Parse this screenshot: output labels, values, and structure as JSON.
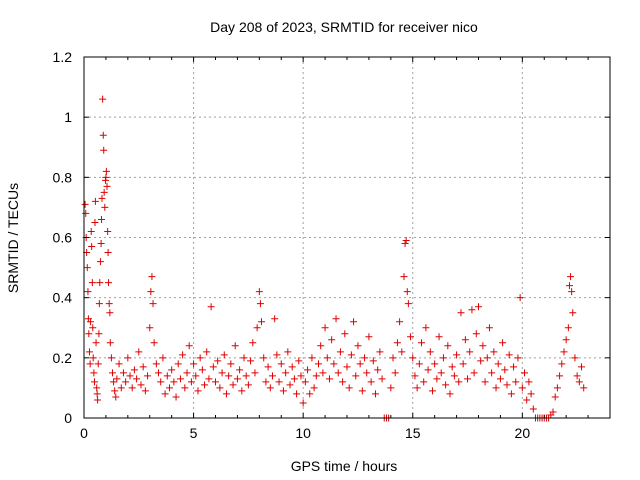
{
  "chart_data": {
    "type": "scatter",
    "title": "Day 208 of 2023, SRMTID for receiver nico",
    "xlabel": "GPS time / hours",
    "ylabel": "SRMTID / TECUs",
    "xlim": [
      0,
      24
    ],
    "ylim": [
      0,
      1.2
    ],
    "grid": true,
    "x_ticks": [
      0,
      5,
      10,
      15,
      20
    ],
    "x_tick_labels": [
      "0",
      "5",
      "10",
      "15",
      "20"
    ],
    "y_ticks": [
      0,
      0.2,
      0.4,
      0.6,
      0.8,
      1.0,
      1.2
    ],
    "y_tick_labels": [
      "0",
      "0.2",
      "0.4",
      "0.6",
      "0.8",
      "1",
      "1.2"
    ],
    "marker": "plus",
    "marker_color": "#e00000",
    "series": [
      {
        "name": "SRMTID",
        "points": [
          [
            0.05,
            0.71
          ],
          [
            0.08,
            0.68
          ],
          [
            0.1,
            0.6
          ],
          [
            0.12,
            0.55
          ],
          [
            0.15,
            0.5
          ],
          [
            0.18,
            0.42
          ],
          [
            0.2,
            0.33
          ],
          [
            0.22,
            0.28
          ],
          [
            0.25,
            0.22
          ],
          [
            0.28,
            0.18
          ],
          [
            0.3,
            0.32
          ],
          [
            0.33,
            0.62
          ],
          [
            0.35,
            0.57
          ],
          [
            0.38,
            0.45
          ],
          [
            0.4,
            0.3
          ],
          [
            0.42,
            0.2
          ],
          [
            0.45,
            0.15
          ],
          [
            0.48,
            0.12
          ],
          [
            0.5,
            0.65
          ],
          [
            0.52,
            0.72
          ],
          [
            0.55,
            0.25
          ],
          [
            0.58,
            0.1
          ],
          [
            0.6,
            0.08
          ],
          [
            0.62,
            0.06
          ],
          [
            0.65,
            0.18
          ],
          [
            0.68,
            0.28
          ],
          [
            0.7,
            0.38
          ],
          [
            0.72,
            0.45
          ],
          [
            0.75,
            0.52
          ],
          [
            0.78,
            0.58
          ],
          [
            0.8,
            0.66
          ],
          [
            0.82,
            0.73
          ],
          [
            0.85,
            1.06
          ],
          [
            0.88,
            0.94
          ],
          [
            0.9,
            0.89
          ],
          [
            0.92,
            0.75
          ],
          [
            0.95,
            0.7
          ],
          [
            0.98,
            0.79
          ],
          [
            1.0,
            0.8
          ],
          [
            1.02,
            0.82
          ],
          [
            1.05,
            0.77
          ],
          [
            1.08,
            0.62
          ],
          [
            1.1,
            0.55
          ],
          [
            1.12,
            0.45
          ],
          [
            1.15,
            0.38
          ],
          [
            1.18,
            0.35
          ],
          [
            1.2,
            0.25
          ],
          [
            1.25,
            0.2
          ],
          [
            1.3,
            0.15
          ],
          [
            1.35,
            0.12
          ],
          [
            1.4,
            0.09
          ],
          [
            1.45,
            0.07
          ],
          [
            1.5,
            0.13
          ],
          [
            1.6,
            0.18
          ],
          [
            1.7,
            0.1
          ],
          [
            1.8,
            0.15
          ],
          [
            1.9,
            0.12
          ],
          [
            2.0,
            0.2
          ],
          [
            2.1,
            0.14
          ],
          [
            2.2,
            0.1
          ],
          [
            2.3,
            0.16
          ],
          [
            2.4,
            0.13
          ],
          [
            2.5,
            0.22
          ],
          [
            2.6,
            0.11
          ],
          [
            2.7,
            0.17
          ],
          [
            2.8,
            0.09
          ],
          [
            2.9,
            0.14
          ],
          [
            3.0,
            0.3
          ],
          [
            3.05,
            0.42
          ],
          [
            3.1,
            0.47
          ],
          [
            3.15,
            0.38
          ],
          [
            3.2,
            0.25
          ],
          [
            3.3,
            0.18
          ],
          [
            3.4,
            0.15
          ],
          [
            3.5,
            0.12
          ],
          [
            3.6,
            0.2
          ],
          [
            3.7,
            0.08
          ],
          [
            3.8,
            0.14
          ],
          [
            3.9,
            0.1
          ],
          [
            4.0,
            0.16
          ],
          [
            4.1,
            0.12
          ],
          [
            4.2,
            0.07
          ],
          [
            4.3,
            0.18
          ],
          [
            4.4,
            0.13
          ],
          [
            4.5,
            0.21
          ],
          [
            4.6,
            0.1
          ],
          [
            4.7,
            0.15
          ],
          [
            4.8,
            0.24
          ],
          [
            4.9,
            0.12
          ],
          [
            5.0,
            0.18
          ],
          [
            5.1,
            0.14
          ],
          [
            5.2,
            0.09
          ],
          [
            5.3,
            0.2
          ],
          [
            5.4,
            0.16
          ],
          [
            5.5,
            0.11
          ],
          [
            5.6,
            0.22
          ],
          [
            5.7,
            0.13
          ],
          [
            5.8,
            0.37
          ],
          [
            5.9,
            0.17
          ],
          [
            6.0,
            0.12
          ],
          [
            6.1,
            0.19
          ],
          [
            6.2,
            0.1
          ],
          [
            6.3,
            0.15
          ],
          [
            6.4,
            0.21
          ],
          [
            6.5,
            0.08
          ],
          [
            6.6,
            0.14
          ],
          [
            6.7,
            0.18
          ],
          [
            6.8,
            0.11
          ],
          [
            6.9,
            0.24
          ],
          [
            7.0,
            0.13
          ],
          [
            7.1,
            0.16
          ],
          [
            7.2,
            0.09
          ],
          [
            7.3,
            0.2
          ],
          [
            7.4,
            0.14
          ],
          [
            7.5,
            0.11
          ],
          [
            7.6,
            0.19
          ],
          [
            7.7,
            0.25
          ],
          [
            7.8,
            0.15
          ],
          [
            7.9,
            0.3
          ],
          [
            8.0,
            0.42
          ],
          [
            8.05,
            0.38
          ],
          [
            8.1,
            0.32
          ],
          [
            8.2,
            0.2
          ],
          [
            8.3,
            0.12
          ],
          [
            8.4,
            0.17
          ],
          [
            8.5,
            0.1
          ],
          [
            8.6,
            0.14
          ],
          [
            8.7,
            0.33
          ],
          [
            8.8,
            0.21
          ],
          [
            8.9,
            0.12
          ],
          [
            9.0,
            0.18
          ],
          [
            9.1,
            0.09
          ],
          [
            9.2,
            0.15
          ],
          [
            9.3,
            0.22
          ],
          [
            9.4,
            0.11
          ],
          [
            9.5,
            0.17
          ],
          [
            9.6,
            0.13
          ],
          [
            9.7,
            0.08
          ],
          [
            9.8,
            0.19
          ],
          [
            9.9,
            0.14
          ],
          [
            10.0,
            0.05
          ],
          [
            10.1,
            0.12
          ],
          [
            10.2,
            0.16
          ],
          [
            10.3,
            0.08
          ],
          [
            10.4,
            0.2
          ],
          [
            10.5,
            0.1
          ],
          [
            10.6,
            0.14
          ],
          [
            10.7,
            0.18
          ],
          [
            10.8,
            0.24
          ],
          [
            10.9,
            0.15
          ],
          [
            11.0,
            0.3
          ],
          [
            11.1,
            0.2
          ],
          [
            11.2,
            0.13
          ],
          [
            11.3,
            0.26
          ],
          [
            11.4,
            0.18
          ],
          [
            11.5,
            0.33
          ],
          [
            11.6,
            0.15
          ],
          [
            11.7,
            0.22
          ],
          [
            11.8,
            0.12
          ],
          [
            11.9,
            0.28
          ],
          [
            12.0,
            0.17
          ],
          [
            12.1,
            0.1
          ],
          [
            12.2,
            0.21
          ],
          [
            12.3,
            0.32
          ],
          [
            12.4,
            0.14
          ],
          [
            12.5,
            0.24
          ],
          [
            12.6,
            0.18
          ],
          [
            12.7,
            0.09
          ],
          [
            12.8,
            0.2
          ],
          [
            12.9,
            0.15
          ],
          [
            13.0,
            0.27
          ],
          [
            13.1,
            0.12
          ],
          [
            13.2,
            0.19
          ],
          [
            13.3,
            0.08
          ],
          [
            13.4,
            0.16
          ],
          [
            13.5,
            0.22
          ],
          [
            13.6,
            0.13
          ],
          [
            13.7,
            0.0
          ],
          [
            13.8,
            0.0
          ],
          [
            13.9,
            0.0
          ],
          [
            14.0,
            0.1
          ],
          [
            14.1,
            0.2
          ],
          [
            14.2,
            0.15
          ],
          [
            14.3,
            0.25
          ],
          [
            14.4,
            0.32
          ],
          [
            14.5,
            0.22
          ],
          [
            14.6,
            0.47
          ],
          [
            14.65,
            0.58
          ],
          [
            14.7,
            0.59
          ],
          [
            14.75,
            0.42
          ],
          [
            14.8,
            0.38
          ],
          [
            14.9,
            0.27
          ],
          [
            15.0,
            0.2
          ],
          [
            15.1,
            0.14
          ],
          [
            15.2,
            0.1
          ],
          [
            15.3,
            0.18
          ],
          [
            15.4,
            0.25
          ],
          [
            15.5,
            0.12
          ],
          [
            15.6,
            0.3
          ],
          [
            15.7,
            0.16
          ],
          [
            15.8,
            0.22
          ],
          [
            15.9,
            0.09
          ],
          [
            16.0,
            0.18
          ],
          [
            16.1,
            0.13
          ],
          [
            16.2,
            0.27
          ],
          [
            16.3,
            0.15
          ],
          [
            16.4,
            0.2
          ],
          [
            16.5,
            0.11
          ],
          [
            16.6,
            0.24
          ],
          [
            16.7,
            0.08
          ],
          [
            16.8,
            0.17
          ],
          [
            16.9,
            0.14
          ],
          [
            17.0,
            0.21
          ],
          [
            17.1,
            0.12
          ],
          [
            17.2,
            0.35
          ],
          [
            17.3,
            0.18
          ],
          [
            17.4,
            0.26
          ],
          [
            17.5,
            0.13
          ],
          [
            17.6,
            0.22
          ],
          [
            17.7,
            0.36
          ],
          [
            17.8,
            0.15
          ],
          [
            17.9,
            0.28
          ],
          [
            18.0,
            0.37
          ],
          [
            18.1,
            0.19
          ],
          [
            18.2,
            0.24
          ],
          [
            18.3,
            0.12
          ],
          [
            18.4,
            0.2
          ],
          [
            18.5,
            0.3
          ],
          [
            18.6,
            0.15
          ],
          [
            18.7,
            0.22
          ],
          [
            18.8,
            0.1
          ],
          [
            18.9,
            0.18
          ],
          [
            19.0,
            0.13
          ],
          [
            19.1,
            0.25
          ],
          [
            19.2,
            0.16
          ],
          [
            19.3,
            0.11
          ],
          [
            19.4,
            0.21
          ],
          [
            19.5,
            0.08
          ],
          [
            19.6,
            0.17
          ],
          [
            19.7,
            0.12
          ],
          [
            19.8,
            0.2
          ],
          [
            19.9,
            0.4
          ],
          [
            20.0,
            0.1
          ],
          [
            20.1,
            0.15
          ],
          [
            20.2,
            0.06
          ],
          [
            20.3,
            0.12
          ],
          [
            20.4,
            0.08
          ],
          [
            20.5,
            0.03
          ],
          [
            20.6,
            0.0
          ],
          [
            20.7,
            0.0
          ],
          [
            20.8,
            0.0
          ],
          [
            20.9,
            0.0
          ],
          [
            21.0,
            0.0
          ],
          [
            21.1,
            0.0
          ],
          [
            21.2,
            0.0
          ],
          [
            21.3,
            0.01
          ],
          [
            21.4,
            0.02
          ],
          [
            21.5,
            0.07
          ],
          [
            21.6,
            0.1
          ],
          [
            21.7,
            0.14
          ],
          [
            21.8,
            0.18
          ],
          [
            21.9,
            0.22
          ],
          [
            22.0,
            0.26
          ],
          [
            22.1,
            0.3
          ],
          [
            22.15,
            0.44
          ],
          [
            22.2,
            0.47
          ],
          [
            22.25,
            0.42
          ],
          [
            22.3,
            0.35
          ],
          [
            22.4,
            0.2
          ],
          [
            22.5,
            0.14
          ],
          [
            22.6,
            0.12
          ],
          [
            22.7,
            0.17
          ],
          [
            22.8,
            0.1
          ]
        ]
      }
    ]
  }
}
